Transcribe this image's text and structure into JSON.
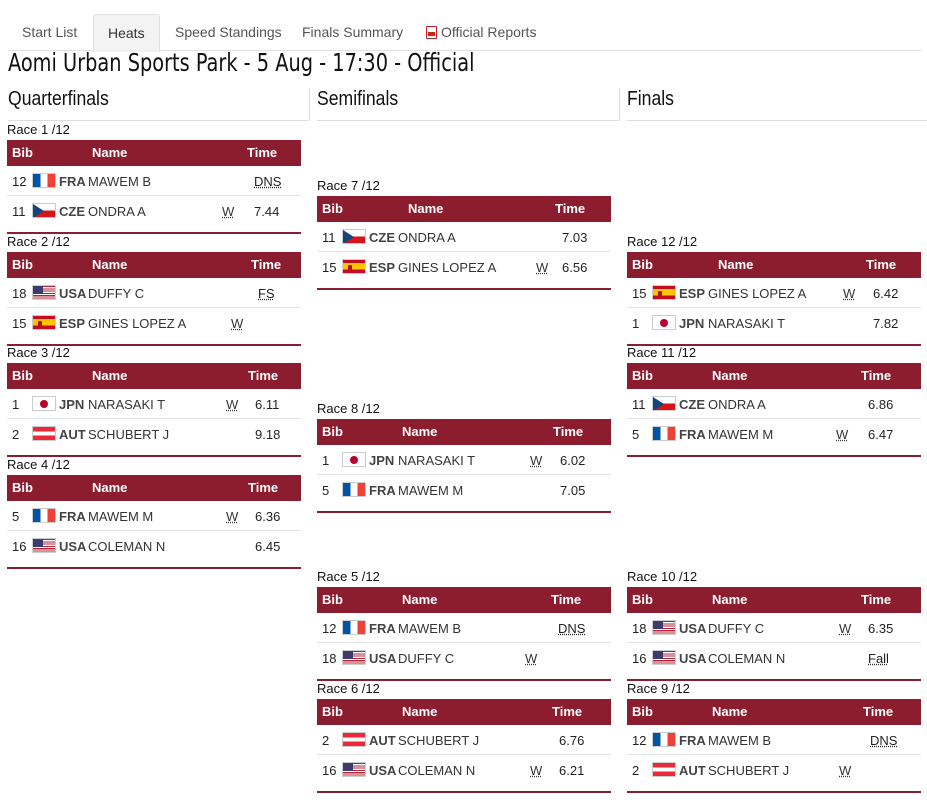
{
  "tabs": [
    {
      "label": "Start List",
      "active": false
    },
    {
      "label": "Heats",
      "active": true
    },
    {
      "label": "Speed Standings",
      "active": false
    },
    {
      "label": "Finals Summary",
      "active": false
    },
    {
      "label": "Official Reports",
      "active": false,
      "icon": "pdf-icon"
    }
  ],
  "page_title": "Aomi Urban Sports Park - 5 Aug - 17:30 - Official",
  "rounds": [
    "Quarterfinals",
    "Semifinals",
    "Finals"
  ],
  "table_headers": {
    "bib": "Bib",
    "name": "Name",
    "time": "Time"
  },
  "colors": {
    "header_bg": "#8c1d2e",
    "header_text": "#ffffff"
  },
  "races": [
    {
      "label": "Race 1 /12",
      "round": "Quarterfinals",
      "rows": [
        {
          "bib": "12",
          "flag": "fra-flag-icon",
          "noc": "FRA",
          "name": "MAWEM B",
          "win": "",
          "time": "DNS"
        },
        {
          "bib": "11",
          "flag": "cze-flag-icon",
          "noc": "CZE",
          "name": "ONDRA A",
          "win": "W",
          "time": "7.44"
        }
      ]
    },
    {
      "label": "Race 2 /12",
      "round": "Quarterfinals",
      "rows": [
        {
          "bib": "18",
          "flag": "usa-flag-icon",
          "noc": "USA",
          "name": "DUFFY C",
          "win": "",
          "time": "FS"
        },
        {
          "bib": "15",
          "flag": "esp-flag-icon",
          "noc": "ESP",
          "name": "GINES LOPEZ A",
          "win": "W",
          "time": ""
        }
      ]
    },
    {
      "label": "Race 3 /12",
      "round": "Quarterfinals",
      "rows": [
        {
          "bib": "1",
          "flag": "jpn-flag-icon",
          "noc": "JPN",
          "name": "NARASAKI T",
          "win": "W",
          "time": "6.11"
        },
        {
          "bib": "2",
          "flag": "aut-flag-icon",
          "noc": "AUT",
          "name": "SCHUBERT J",
          "win": "",
          "time": "9.18"
        }
      ]
    },
    {
      "label": "Race 4 /12",
      "round": "Quarterfinals",
      "rows": [
        {
          "bib": "5",
          "flag": "fra-flag-icon",
          "noc": "FRA",
          "name": "MAWEM M",
          "win": "W",
          "time": "6.36"
        },
        {
          "bib": "16",
          "flag": "usa-flag-icon",
          "noc": "USA",
          "name": "COLEMAN N",
          "win": "",
          "time": "6.45"
        }
      ]
    },
    {
      "label": "Race 7 /12",
      "round": "Semifinals",
      "rows": [
        {
          "bib": "11",
          "flag": "cze-flag-icon",
          "noc": "CZE",
          "name": "ONDRA A",
          "win": "",
          "time": "7.03"
        },
        {
          "bib": "15",
          "flag": "esp-flag-icon",
          "noc": "ESP",
          "name": "GINES LOPEZ A",
          "win": "W",
          "time": "6.56"
        }
      ]
    },
    {
      "label": "Race 8 /12",
      "round": "Semifinals",
      "rows": [
        {
          "bib": "1",
          "flag": "jpn-flag-icon",
          "noc": "JPN",
          "name": "NARASAKI T",
          "win": "W",
          "time": "6.02"
        },
        {
          "bib": "5",
          "flag": "fra-flag-icon",
          "noc": "FRA",
          "name": "MAWEM M",
          "win": "",
          "time": "7.05"
        }
      ]
    },
    {
      "label": "Race 5 /12",
      "round": "Semifinals",
      "rows": [
        {
          "bib": "12",
          "flag": "fra-flag-icon",
          "noc": "FRA",
          "name": "MAWEM B",
          "win": "",
          "time": "DNS"
        },
        {
          "bib": "18",
          "flag": "usa-flag-icon",
          "noc": "USA",
          "name": "DUFFY C",
          "win": "W",
          "time": ""
        }
      ]
    },
    {
      "label": "Race 6 /12",
      "round": "Semifinals",
      "rows": [
        {
          "bib": "2",
          "flag": "aut-flag-icon",
          "noc": "AUT",
          "name": "SCHUBERT J",
          "win": "",
          "time": "6.76"
        },
        {
          "bib": "16",
          "flag": "usa-flag-icon",
          "noc": "USA",
          "name": "COLEMAN N",
          "win": "W",
          "time": "6.21"
        }
      ]
    },
    {
      "label": "Race 12 /12",
      "round": "Finals",
      "rows": [
        {
          "bib": "15",
          "flag": "esp-flag-icon",
          "noc": "ESP",
          "name": "GINES LOPEZ A",
          "win": "W",
          "time": "6.42"
        },
        {
          "bib": "1",
          "flag": "jpn-flag-icon",
          "noc": "JPN",
          "name": "NARASAKI T",
          "win": "",
          "time": "7.82"
        }
      ]
    },
    {
      "label": "Race 11 /12",
      "round": "Finals",
      "rows": [
        {
          "bib": "11",
          "flag": "cze-flag-icon",
          "noc": "CZE",
          "name": "ONDRA A",
          "win": "",
          "time": "6.86"
        },
        {
          "bib": "5",
          "flag": "fra-flag-icon",
          "noc": "FRA",
          "name": "MAWEM M",
          "win": "W",
          "time": "6.47"
        }
      ]
    },
    {
      "label": "Race 10 /12",
      "round": "Finals",
      "rows": [
        {
          "bib": "18",
          "flag": "usa-flag-icon",
          "noc": "USA",
          "name": "DUFFY C",
          "win": "W",
          "time": "6.35"
        },
        {
          "bib": "16",
          "flag": "usa-flag-icon",
          "noc": "USA",
          "name": "COLEMAN N",
          "win": "",
          "time": "Fall"
        }
      ]
    },
    {
      "label": "Race 9 /12",
      "round": "Finals",
      "rows": [
        {
          "bib": "12",
          "flag": "fra-flag-icon",
          "noc": "FRA",
          "name": "MAWEM B",
          "win": "",
          "time": "DNS"
        },
        {
          "bib": "2",
          "flag": "aut-flag-icon",
          "noc": "AUT",
          "name": "SCHUBERT J",
          "win": "W",
          "time": ""
        }
      ]
    }
  ]
}
